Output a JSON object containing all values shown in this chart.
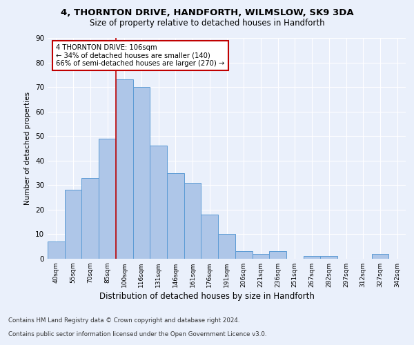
{
  "title_line1": "4, THORNTON DRIVE, HANDFORTH, WILMSLOW, SK9 3DA",
  "title_line2": "Size of property relative to detached houses in Handforth",
  "xlabel": "Distribution of detached houses by size in Handforth",
  "ylabel": "Number of detached properties",
  "categories": [
    "40sqm",
    "55sqm",
    "70sqm",
    "85sqm",
    "100sqm",
    "116sqm",
    "131sqm",
    "146sqm",
    "161sqm",
    "176sqm",
    "191sqm",
    "206sqm",
    "221sqm",
    "236sqm",
    "251sqm",
    "267sqm",
    "282sqm",
    "297sqm",
    "312sqm",
    "327sqm",
    "342sqm"
  ],
  "values": [
    7,
    28,
    33,
    49,
    73,
    70,
    46,
    35,
    31,
    18,
    10,
    3,
    2,
    3,
    0,
    1,
    1,
    0,
    0,
    2,
    0
  ],
  "bar_color": "#aec6e8",
  "bar_edge_color": "#5b9bd5",
  "highlight_index": 4,
  "highlight_color": "#c00000",
  "annotation_line1": "4 THORNTON DRIVE: 106sqm",
  "annotation_line2": "← 34% of detached houses are smaller (140)",
  "annotation_line3": "66% of semi-detached houses are larger (270) →",
  "annotation_box_color": "#c00000",
  "ylim": [
    0,
    90
  ],
  "yticks": [
    0,
    10,
    20,
    30,
    40,
    50,
    60,
    70,
    80,
    90
  ],
  "footer_line1": "Contains HM Land Registry data © Crown copyright and database right 2024.",
  "footer_line2": "Contains public sector information licensed under the Open Government Licence v3.0.",
  "bg_color": "#eaf0fb",
  "plot_bg_color": "#eaf0fb"
}
